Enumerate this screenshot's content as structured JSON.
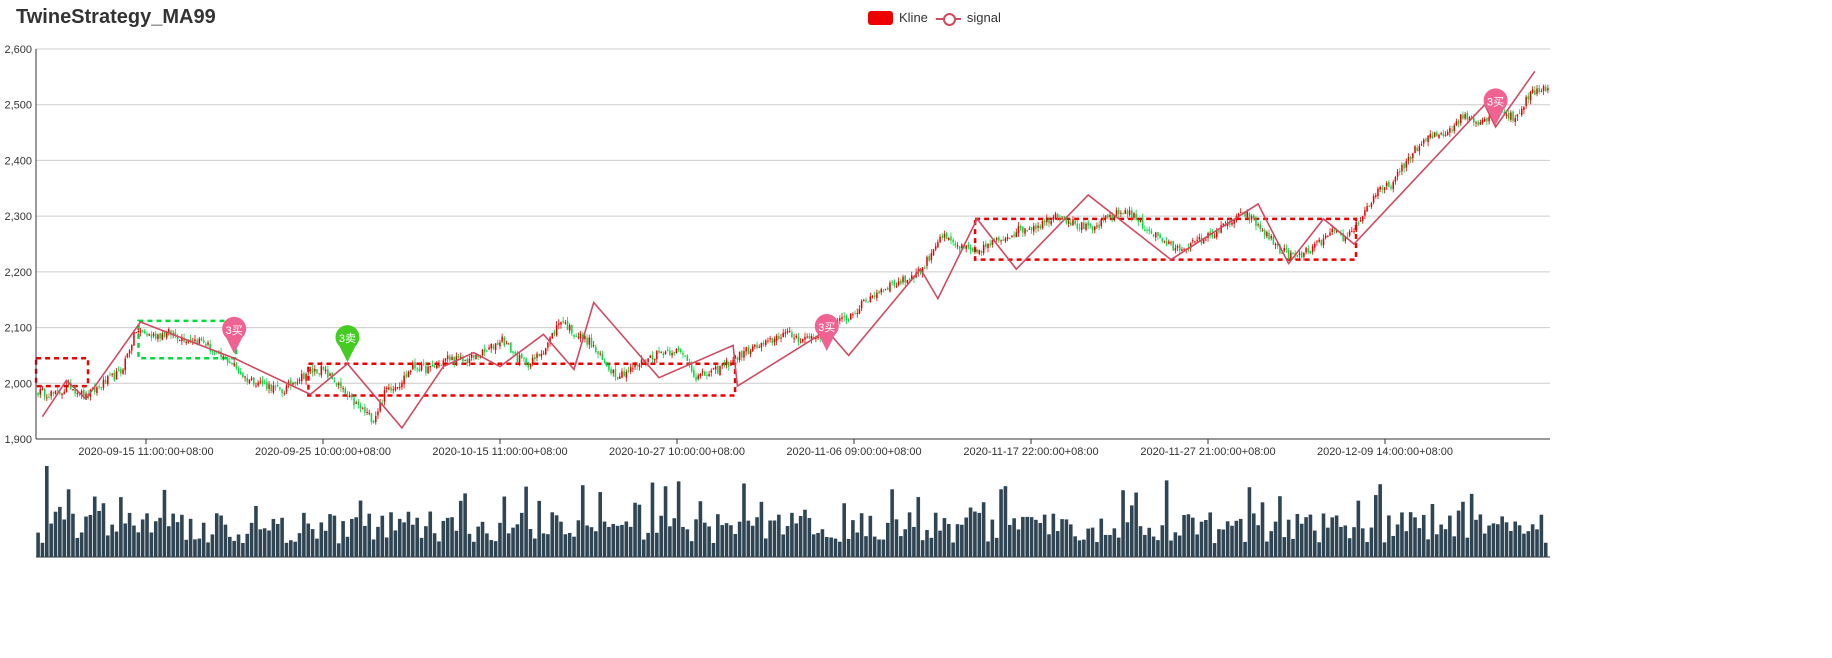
{
  "chart_data": {
    "type": "candlestick",
    "title": "TwineStrategy_MA99",
    "legend": {
      "position": "top-center",
      "items": [
        {
          "name": "Kline",
          "color": "#ec0000"
        },
        {
          "name": "signal",
          "color": "#d14a61"
        }
      ]
    },
    "y_axis": {
      "min": 1900,
      "max": 2600,
      "interval": 100,
      "ticks": [
        "1,900",
        "2,000",
        "2,100",
        "2,200",
        "2,300",
        "2,400",
        "2,500",
        "2,600"
      ],
      "grid": true
    },
    "x_axis": {
      "tick_labels": [
        "2020-09-15 11:00:00+08:00",
        "2020-09-25 10:00:00+08:00",
        "2020-10-15 11:00:00+08:00",
        "2020-10-27 10:00:00+08:00",
        "2020-11-06 09:00:00+08:00",
        "2020-11-17 22:00:00+08:00",
        "2020-11-27 21:00:00+08:00",
        "2020-12-09 14:00:00+08:00"
      ]
    },
    "colors": {
      "up": "#ec0000",
      "down": "#00da3c",
      "signal_line": "#d14a61",
      "volume": "#2f4554",
      "buy_marker": "#f06292",
      "sell_marker": "#44cc22",
      "axis": "#333333",
      "grid": "#cccccc"
    },
    "price_anchors": [
      [
        0,
        1985
      ],
      [
        8,
        1980
      ],
      [
        15,
        1995
      ],
      [
        22,
        1975
      ],
      [
        30,
        2000
      ],
      [
        38,
        2020
      ],
      [
        45,
        2095
      ],
      [
        52,
        2085
      ],
      [
        60,
        2090
      ],
      [
        68,
        2080
      ],
      [
        76,
        2075
      ],
      [
        82,
        2050
      ],
      [
        88,
        2040
      ],
      [
        95,
        2010
      ],
      [
        103,
        2000
      ],
      [
        112,
        1985
      ],
      [
        118,
        2005
      ],
      [
        124,
        2020
      ],
      [
        130,
        2025
      ],
      [
        136,
        2005
      ],
      [
        142,
        1975
      ],
      [
        148,
        1955
      ],
      [
        154,
        1935
      ],
      [
        160,
        1990
      ],
      [
        166,
        2000
      ],
      [
        172,
        2030
      ],
      [
        180,
        2025
      ],
      [
        188,
        2045
      ],
      [
        196,
        2040
      ],
      [
        205,
        2055
      ],
      [
        213,
        2080
      ],
      [
        220,
        2045
      ],
      [
        226,
        2035
      ],
      [
        233,
        2065
      ],
      [
        240,
        2115
      ],
      [
        246,
        2090
      ],
      [
        253,
        2075
      ],
      [
        260,
        2035
      ],
      [
        266,
        2015
      ],
      [
        272,
        2025
      ],
      [
        278,
        2040
      ],
      [
        285,
        2055
      ],
      [
        292,
        2060
      ],
      [
        298,
        2045
      ],
      [
        302,
        2010
      ],
      [
        310,
        2020
      ],
      [
        318,
        2040
      ],
      [
        326,
        2060
      ],
      [
        334,
        2070
      ],
      [
        342,
        2090
      ],
      [
        350,
        2080
      ],
      [
        358,
        2085
      ],
      [
        366,
        2105
      ],
      [
        374,
        2125
      ],
      [
        382,
        2155
      ],
      [
        390,
        2175
      ],
      [
        398,
        2185
      ],
      [
        406,
        2205
      ],
      [
        414,
        2265
      ],
      [
        422,
        2245
      ],
      [
        430,
        2235
      ],
      [
        440,
        2255
      ],
      [
        450,
        2275
      ],
      [
        460,
        2285
      ],
      [
        468,
        2305
      ],
      [
        476,
        2285
      ],
      [
        484,
        2275
      ],
      [
        492,
        2300
      ],
      [
        500,
        2310
      ],
      [
        508,
        2280
      ],
      [
        515,
        2260
      ],
      [
        522,
        2240
      ],
      [
        530,
        2250
      ],
      [
        538,
        2265
      ],
      [
        546,
        2285
      ],
      [
        554,
        2305
      ],
      [
        562,
        2275
      ],
      [
        570,
        2240
      ],
      [
        578,
        2225
      ],
      [
        586,
        2245
      ],
      [
        594,
        2270
      ],
      [
        600,
        2260
      ],
      [
        606,
        2290
      ],
      [
        614,
        2340
      ],
      [
        622,
        2360
      ],
      [
        630,
        2410
      ],
      [
        638,
        2440
      ],
      [
        646,
        2450
      ],
      [
        654,
        2480
      ],
      [
        662,
        2470
      ],
      [
        670,
        2490
      ],
      [
        678,
        2475
      ],
      [
        684,
        2515
      ],
      [
        690,
        2530
      ]
    ],
    "signal": [
      [
        2,
        1940
      ],
      [
        13,
        2005
      ],
      [
        22,
        1972
      ],
      [
        47,
        2110
      ],
      [
        90,
        2045
      ],
      [
        125,
        1980
      ],
      [
        142,
        2035
      ],
      [
        167,
        1920
      ],
      [
        186,
        2030
      ],
      [
        200,
        2055
      ],
      [
        212,
        2030
      ],
      [
        232,
        2088
      ],
      [
        246,
        2025
      ],
      [
        255,
        2145
      ],
      [
        285,
        2010
      ],
      [
        319,
        2068
      ],
      [
        321,
        1995
      ],
      [
        362,
        2095
      ],
      [
        372,
        2050
      ],
      [
        405,
        2205
      ],
      [
        413,
        2152
      ],
      [
        431,
        2295
      ],
      [
        449,
        2205
      ],
      [
        482,
        2338
      ],
      [
        520,
        2222
      ],
      [
        560,
        2322
      ],
      [
        574,
        2215
      ],
      [
        590,
        2295
      ],
      [
        604,
        2250
      ],
      [
        664,
        2500
      ],
      [
        669,
        2460
      ],
      [
        687,
        2560
      ]
    ],
    "zones": [
      {
        "x": [
          0,
          22
        ],
        "y": [
          1995,
          2045
        ],
        "color": "#ec0000"
      },
      {
        "x": [
          47,
          90
        ],
        "y": [
          2045,
          2112
        ],
        "color": "#00da3c"
      },
      {
        "x": [
          125,
          319
        ],
        "y": [
          1978,
          2035
        ],
        "color": "#ec0000"
      },
      {
        "x": [
          431,
          604
        ],
        "y": [
          2222,
          2295
        ],
        "color": "#ec0000"
      }
    ],
    "markers": [
      {
        "label": "3买",
        "type": "buy",
        "x": 90,
        "value": 2053
      },
      {
        "label": "3卖",
        "type": "sell",
        "x": 142,
        "value": 2038
      },
      {
        "label": "3买",
        "type": "buy",
        "x": 362,
        "value": 2058
      },
      {
        "label": "3买",
        "type": "buy",
        "x": 669,
        "value": 2463
      }
    ]
  }
}
